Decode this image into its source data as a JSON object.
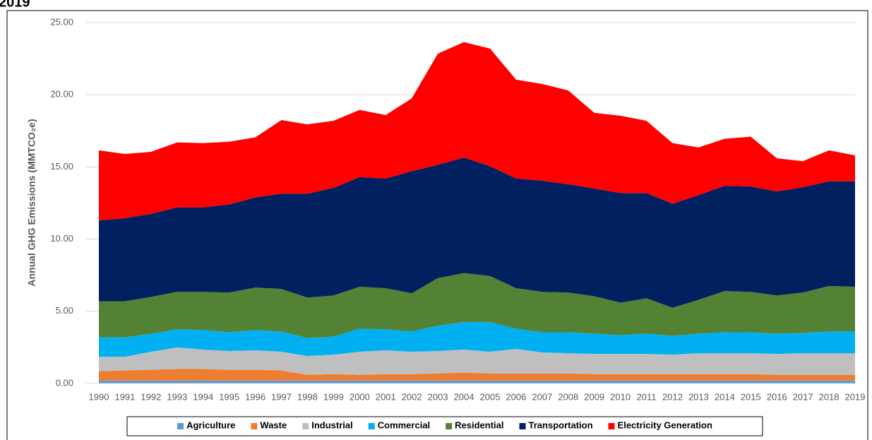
{
  "chart_data": {
    "type": "stacked-area",
    "title": "2019",
    "y_label": "Annual GHG Emissions (MMTCO₂e)",
    "categories": [
      "1990",
      "1991",
      "1992",
      "1993",
      "1994",
      "1995",
      "1996",
      "1997",
      "1998",
      "1999",
      "2000",
      "2001",
      "2002",
      "2003",
      "2004",
      "2005",
      "2006",
      "2007",
      "2008",
      "2009",
      "2010",
      "2011",
      "2012",
      "2013",
      "2014",
      "2015",
      "2016",
      "2017",
      "2018",
      "2019"
    ],
    "series": [
      {
        "name": "Agriculture",
        "color": "#5b9bd5",
        "values": [
          0.2,
          0.2,
          0.2,
          0.2,
          0.2,
          0.2,
          0.2,
          0.2,
          0.2,
          0.2,
          0.2,
          0.2,
          0.2,
          0.2,
          0.2,
          0.2,
          0.2,
          0.2,
          0.2,
          0.2,
          0.2,
          0.2,
          0.2,
          0.2,
          0.2,
          0.2,
          0.2,
          0.2,
          0.2,
          0.2
        ]
      },
      {
        "name": "Waste",
        "color": "#ed7d31",
        "values": [
          0.65,
          0.7,
          0.75,
          0.8,
          0.8,
          0.75,
          0.75,
          0.7,
          0.4,
          0.45,
          0.4,
          0.45,
          0.45,
          0.5,
          0.55,
          0.5,
          0.5,
          0.5,
          0.5,
          0.45,
          0.45,
          0.45,
          0.45,
          0.45,
          0.45,
          0.45,
          0.4,
          0.4,
          0.4,
          0.4
        ]
      },
      {
        "name": "Industrial",
        "color": "#bfbfbf",
        "values": [
          1.0,
          0.95,
          1.25,
          1.5,
          1.35,
          1.3,
          1.35,
          1.3,
          1.3,
          1.35,
          1.6,
          1.65,
          1.55,
          1.55,
          1.6,
          1.5,
          1.7,
          1.45,
          1.4,
          1.4,
          1.4,
          1.4,
          1.35,
          1.45,
          1.45,
          1.45,
          1.45,
          1.5,
          1.5,
          1.5
        ]
      },
      {
        "name": "Commercial",
        "color": "#00b0f0",
        "values": [
          1.35,
          1.35,
          1.25,
          1.25,
          1.35,
          1.3,
          1.4,
          1.4,
          1.25,
          1.25,
          1.6,
          1.45,
          1.4,
          1.75,
          1.9,
          2.05,
          1.4,
          1.4,
          1.45,
          1.4,
          1.3,
          1.4,
          1.3,
          1.35,
          1.45,
          1.45,
          1.4,
          1.4,
          1.5,
          1.5
        ]
      },
      {
        "name": "Residential",
        "color": "#548235",
        "values": [
          2.5,
          2.5,
          2.55,
          2.6,
          2.65,
          2.75,
          2.95,
          2.95,
          2.8,
          2.85,
          2.9,
          2.85,
          2.65,
          3.3,
          3.4,
          3.2,
          2.8,
          2.8,
          2.75,
          2.6,
          2.25,
          2.45,
          1.95,
          2.35,
          2.85,
          2.8,
          2.65,
          2.8,
          3.15,
          3.1
        ]
      },
      {
        "name": "Transportation",
        "color": "#002060",
        "values": [
          5.6,
          5.75,
          5.75,
          5.85,
          5.85,
          6.1,
          6.25,
          6.6,
          7.2,
          7.45,
          7.6,
          7.6,
          8.45,
          7.85,
          8.0,
          7.6,
          7.6,
          7.7,
          7.5,
          7.45,
          7.6,
          7.3,
          7.2,
          7.25,
          7.3,
          7.3,
          7.2,
          7.3,
          7.25,
          7.3
        ]
      },
      {
        "name": "Electricity Generation",
        "color": "#ff0000",
        "values": [
          4.85,
          4.45,
          4.3,
          4.5,
          4.45,
          4.35,
          4.15,
          5.1,
          4.8,
          4.65,
          4.65,
          4.4,
          5.05,
          7.7,
          8.0,
          8.15,
          6.85,
          6.7,
          6.5,
          5.25,
          5.35,
          5.0,
          4.2,
          3.3,
          3.25,
          3.45,
          2.3,
          1.8,
          2.15,
          1.8
        ]
      }
    ],
    "ylim": [
      0,
      25
    ],
    "yticks": [
      {
        "value": 0,
        "label": "0.00"
      },
      {
        "value": 5,
        "label": "5.00"
      },
      {
        "value": 10,
        "label": "10.00"
      },
      {
        "value": 15,
        "label": "15.00"
      },
      {
        "value": 20,
        "label": "20.00"
      },
      {
        "value": 25,
        "label": "25.00"
      }
    ],
    "grid": true,
    "legend": "bottom"
  }
}
